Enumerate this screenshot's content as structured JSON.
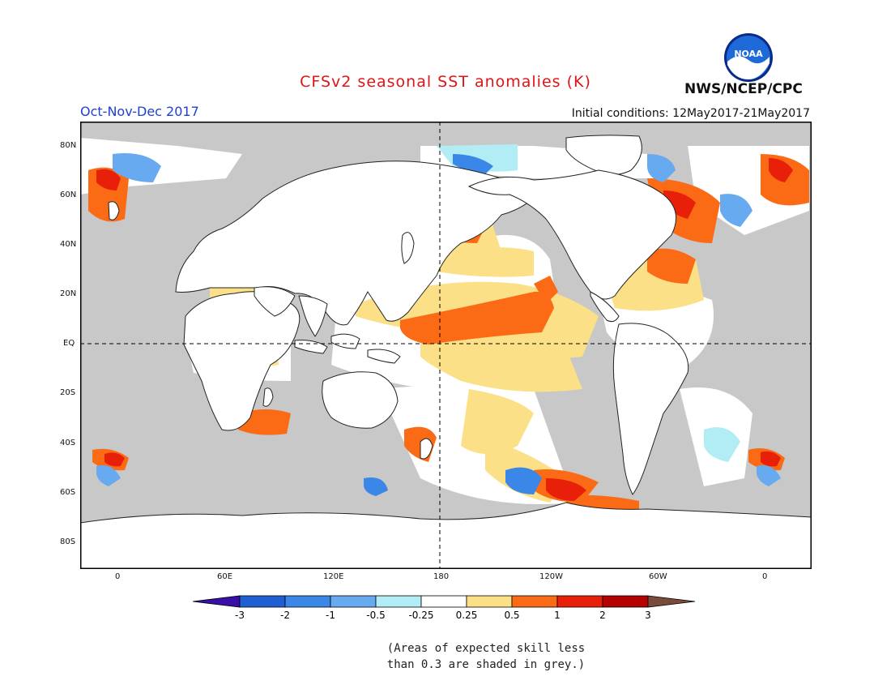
{
  "title": "CFSv2 seasonal SST anomalies (K)",
  "season": "Oct-Nov-Dec 2017",
  "initial_conditions": "Initial conditions: 12May2017-21May2017",
  "agency": "NWS/NCEP/CPC",
  "logo_text": "NOAA",
  "lat_labels": [
    "80N",
    "60N",
    "40N",
    "20N",
    "EQ",
    "20S",
    "40S",
    "60S",
    "80S"
  ],
  "lon_labels": [
    "0",
    "60E",
    "120E",
    "180",
    "120W",
    "60W",
    "0"
  ],
  "colorbar": {
    "labels": [
      "-3",
      "-2",
      "-1",
      "-0.5",
      "-0.25",
      "0.25",
      "0.5",
      "1",
      "2",
      "3"
    ],
    "colors": [
      "#3a0fa8",
      "#1f5fd2",
      "#3b87e8",
      "#68aaf0",
      "#b2ecf4",
      "#ffffff",
      "#fbe088",
      "#fb6a14",
      "#e8200a",
      "#b40000",
      "#7a4a3a"
    ]
  },
  "note_lines": [
    "(Areas of expected skill less",
    "than 0.3 are shaded in grey.)"
  ],
  "colors": {
    "land": "#ffffff",
    "grey_skill_mask": "#c8c8c8",
    "title_red": "#e01414",
    "season_blue": "#2040d0"
  }
}
